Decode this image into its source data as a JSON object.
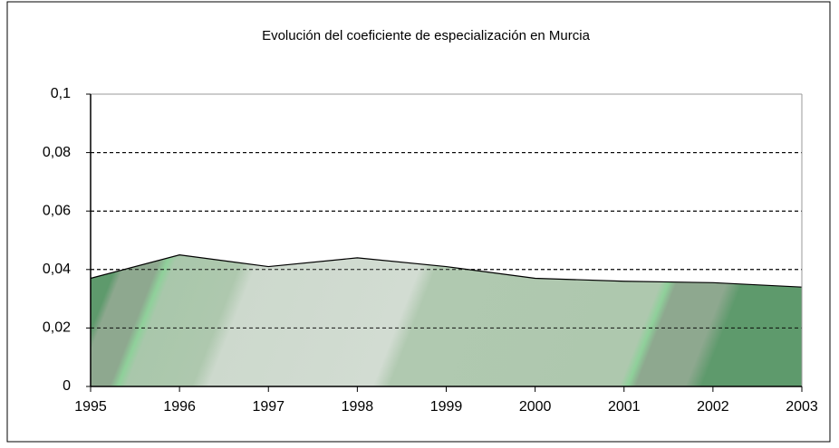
{
  "chart_data": {
    "type": "area",
    "title": "Evolución del coeficiente de especialización en Murcia",
    "x": [
      1995,
      1996,
      1997,
      1998,
      1999,
      2000,
      2001,
      2002,
      2003
    ],
    "series": [
      {
        "values": [
          0.037,
          0.045,
          0.041,
          0.044,
          0.041,
          0.037,
          0.036,
          0.0355,
          0.034
        ]
      }
    ],
    "xlim": [
      1995,
      2003
    ],
    "xticks": [
      1995,
      1996,
      1997,
      1998,
      1999,
      2000,
      2001,
      2002,
      2003
    ],
    "ylim": [
      0,
      0.1
    ],
    "yticks": [
      0,
      {
        "value": 0.02,
        "label": "0,02"
      },
      {
        "value": 0.04,
        "label": "0,04"
      },
      {
        "value": 0.06,
        "label": "0,06"
      },
      {
        "value": 0.08,
        "label": "0,08"
      },
      {
        "value": 0.1,
        "label": "0,1"
      }
    ],
    "grid": true
  }
}
